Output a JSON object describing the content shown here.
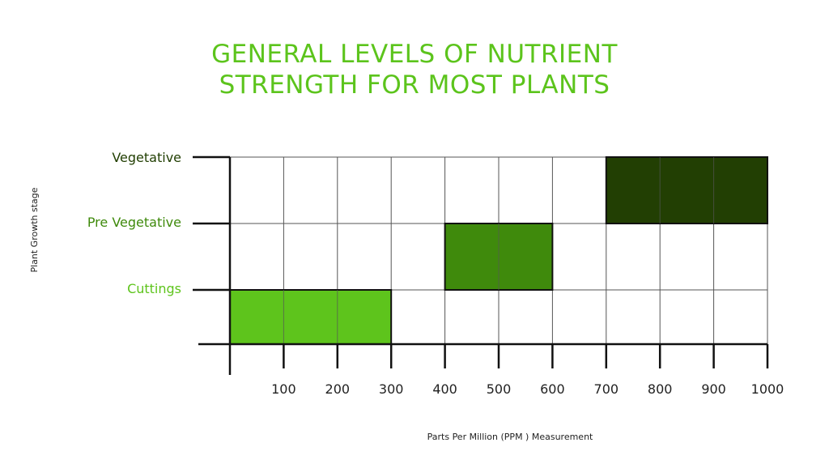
{
  "chart_data": {
    "type": "bar",
    "orientation": "horizontal-range",
    "title_lines": [
      "GENERAL LEVELS OF NUTRIENT",
      "STRENGTH FOR MOST PLANTS"
    ],
    "xlabel": "Parts Per Million (PPM ) Measurement",
    "ylabel": "Plant Growth stage",
    "xlim": [
      0,
      1000
    ],
    "xticks": [
      "100",
      "200",
      "300",
      "400",
      "500",
      "600",
      "700",
      "800",
      "900",
      "1000"
    ],
    "grid": true,
    "categories": [
      {
        "label": "Cuttings",
        "color": "#5ec41c"
      },
      {
        "label": "Pre Vegetative",
        "color": "#3f8a0c"
      },
      {
        "label": "Vegetative",
        "color": "#223f03"
      }
    ],
    "ranges": [
      {
        "category": "Cuttings",
        "start": 0,
        "end": 300,
        "color": "#5ec41c"
      },
      {
        "category": "Pre Vegetative",
        "start": 400,
        "end": 600,
        "color": "#3f8a0c"
      },
      {
        "category": "Vegetative",
        "start": 700,
        "end": 1000,
        "color": "#223f03"
      }
    ]
  }
}
